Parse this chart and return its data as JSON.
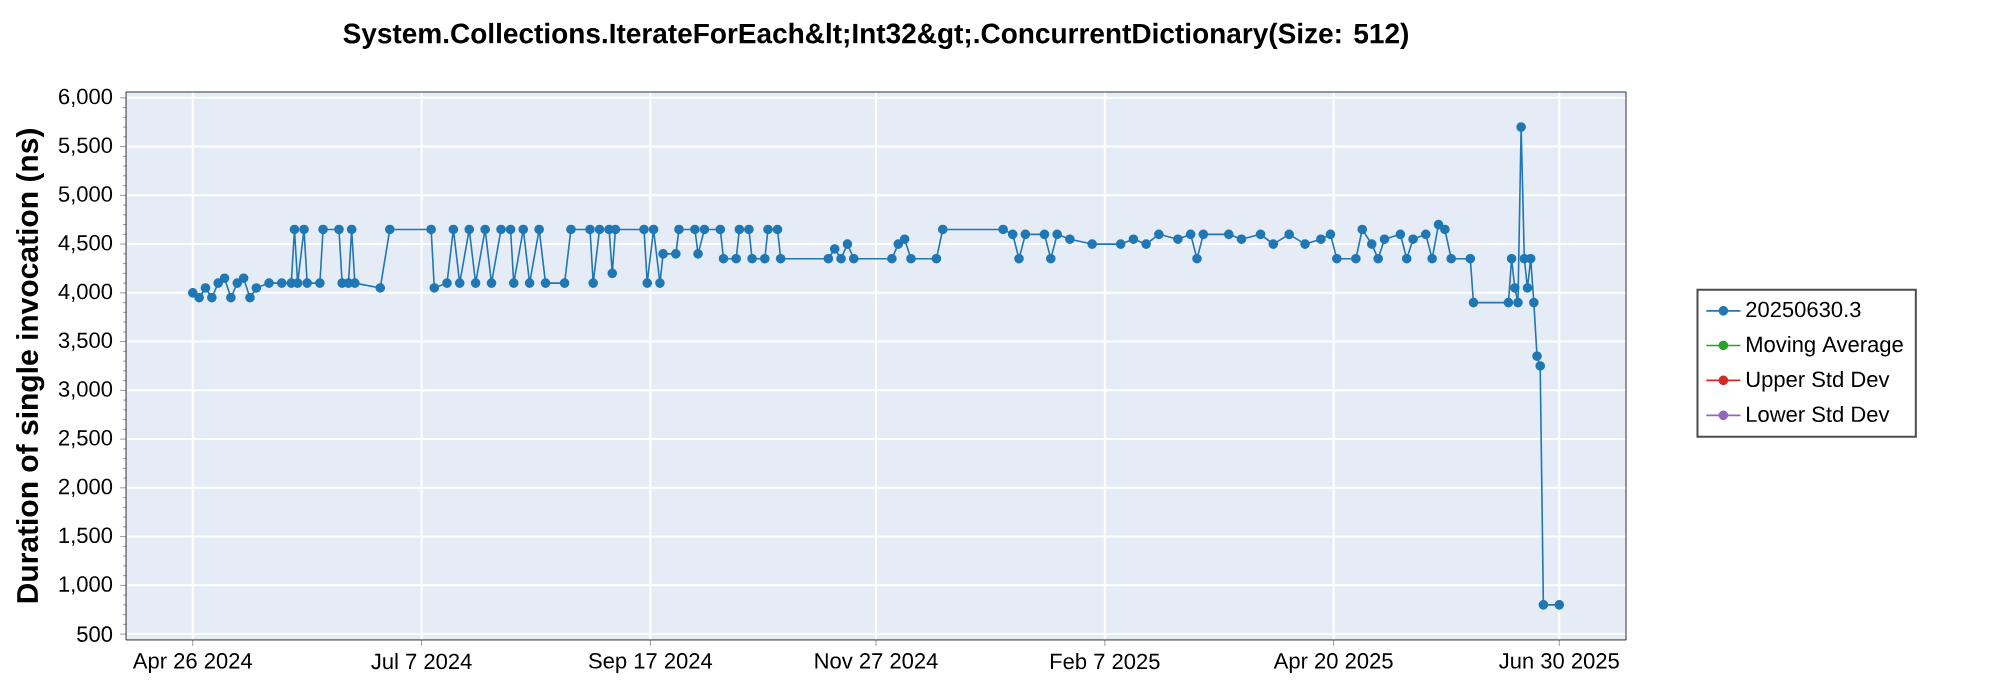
{
  "chart_data": {
    "type": "line",
    "title": "System.Collections.IterateForEach&lt;Int32&gt;.ConcurrentDictionary(Size: 512)",
    "ylabel": "Duration of single invocation (ns)",
    "xlim": [
      "2024-04-05",
      "2025-07-21"
    ],
    "ylim": [
      440,
      6060
    ],
    "xticks": [
      {
        "value": "2024-04-26",
        "label": "Apr 26 2024"
      },
      {
        "value": "2024-07-07",
        "label": "Jul 7 2024"
      },
      {
        "value": "2024-09-17",
        "label": "Sep 17 2024"
      },
      {
        "value": "2024-11-27",
        "label": "Nov 27 2024"
      },
      {
        "value": "2025-02-07",
        "label": "Feb 7 2025"
      },
      {
        "value": "2025-04-20",
        "label": "Apr 20 2025"
      },
      {
        "value": "2025-06-30",
        "label": "Jun 30 2025"
      }
    ],
    "yticks": [
      {
        "value": 500,
        "label": "500"
      },
      {
        "value": 1000,
        "label": "1,000"
      },
      {
        "value": 1500,
        "label": "1,500"
      },
      {
        "value": 2000,
        "label": "2,000"
      },
      {
        "value": 2500,
        "label": "2,500"
      },
      {
        "value": 3000,
        "label": "3,000"
      },
      {
        "value": 3500,
        "label": "3,500"
      },
      {
        "value": 4000,
        "label": "4,000"
      },
      {
        "value": 4500,
        "label": "4,500"
      },
      {
        "value": 5000,
        "label": "5,000"
      },
      {
        "value": 5500,
        "label": "5,500"
      },
      {
        "value": 6000,
        "label": "6,000"
      }
    ],
    "grid": true,
    "legend": "right",
    "marker": "circle",
    "line_style": "solid",
    "series": [
      {
        "name": "20250630.3",
        "color": "#1f77b4",
        "x": [
          "2024-04-26",
          "2024-04-28",
          "2024-04-30",
          "2024-05-02",
          "2024-05-04",
          "2024-05-06",
          "2024-05-08",
          "2024-05-10",
          "2024-05-12",
          "2024-05-14",
          "2024-05-16",
          "2024-05-20",
          "2024-05-24",
          "2024-05-27",
          "2024-05-28",
          "2024-05-29",
          "2024-05-31",
          "2024-06-01",
          "2024-06-05",
          "2024-06-06",
          "2024-06-11",
          "2024-06-12",
          "2024-06-14",
          "2024-06-15",
          "2024-06-16",
          "2024-06-24",
          "2024-06-27",
          "2024-07-10",
          "2024-07-11",
          "2024-07-15",
          "2024-07-17",
          "2024-07-19",
          "2024-07-22",
          "2024-07-24",
          "2024-07-27",
          "2024-07-29",
          "2024-08-01",
          "2024-08-04",
          "2024-08-05",
          "2024-08-08",
          "2024-08-10",
          "2024-08-13",
          "2024-08-15",
          "2024-08-21",
          "2024-08-23",
          "2024-08-29",
          "2024-08-30",
          "2024-09-01",
          "2024-09-04",
          "2024-09-05",
          "2024-09-06",
          "2024-09-15",
          "2024-09-16",
          "2024-09-18",
          "2024-09-20",
          "2024-09-21",
          "2024-09-25",
          "2024-09-26",
          "2024-10-01",
          "2024-10-02",
          "2024-10-04",
          "2024-10-09",
          "2024-10-10",
          "2024-10-14",
          "2024-10-15",
          "2024-10-18",
          "2024-10-19",
          "2024-10-23",
          "2024-10-24",
          "2024-10-27",
          "2024-10-28",
          "2024-11-12",
          "2024-11-14",
          "2024-11-16",
          "2024-11-18",
          "2024-11-20",
          "2024-12-02",
          "2024-12-04",
          "2024-12-06",
          "2024-12-08",
          "2024-12-16",
          "2024-12-18",
          "2025-01-06",
          "2025-01-09",
          "2025-01-11",
          "2025-01-13",
          "2025-01-19",
          "2025-01-21",
          "2025-01-23",
          "2025-01-27",
          "2025-02-03",
          "2025-02-12",
          "2025-02-16",
          "2025-02-20",
          "2025-02-24",
          "2025-03-02",
          "2025-03-06",
          "2025-03-08",
          "2025-03-10",
          "2025-03-18",
          "2025-03-22",
          "2025-03-28",
          "2025-04-01",
          "2025-04-06",
          "2025-04-11",
          "2025-04-16",
          "2025-04-19",
          "2025-04-21",
          "2025-04-27",
          "2025-04-29",
          "2025-05-02",
          "2025-05-04",
          "2025-05-06",
          "2025-05-11",
          "2025-05-13",
          "2025-05-15",
          "2025-05-19",
          "2025-05-21",
          "2025-05-23",
          "2025-05-25",
          "2025-05-27",
          "2025-06-02",
          "2025-06-03",
          "2025-06-14",
          "2025-06-15",
          "2025-06-16",
          "2025-06-17",
          "2025-06-18",
          "2025-06-19",
          "2025-06-20",
          "2025-06-21",
          "2025-06-22",
          "2025-06-23",
          "2025-06-24",
          "2025-06-25",
          "2025-06-30"
        ],
        "values": [
          4000,
          3950,
          4050,
          3950,
          4100,
          4150,
          3950,
          4100,
          4150,
          3950,
          4050,
          4100,
          4100,
          4100,
          4650,
          4100,
          4650,
          4100,
          4100,
          4650,
          4650,
          4100,
          4100,
          4650,
          4100,
          4050,
          4650,
          4650,
          4050,
          4100,
          4650,
          4100,
          4650,
          4100,
          4650,
          4100,
          4650,
          4650,
          4100,
          4650,
          4100,
          4650,
          4100,
          4100,
          4650,
          4650,
          4100,
          4650,
          4650,
          4200,
          4650,
          4650,
          4100,
          4650,
          4100,
          4400,
          4400,
          4650,
          4650,
          4400,
          4650,
          4650,
          4350,
          4350,
          4650,
          4650,
          4350,
          4350,
          4650,
          4650,
          4350,
          4350,
          4450,
          4350,
          4500,
          4350,
          4350,
          4500,
          4550,
          4350,
          4350,
          4650,
          4650,
          4600,
          4350,
          4600,
          4600,
          4350,
          4600,
          4550,
          4500,
          4500,
          4550,
          4500,
          4600,
          4550,
          4600,
          4350,
          4600,
          4600,
          4550,
          4600,
          4500,
          4600,
          4500,
          4550,
          4600,
          4350,
          4350,
          4650,
          4500,
          4350,
          4550,
          4600,
          4350,
          4550,
          4600,
          4350,
          4700,
          4650,
          4350,
          4350,
          3900,
          3900,
          4350,
          4050,
          3900,
          5700,
          4350,
          4050,
          4350,
          3900,
          3350,
          3250,
          800,
          800
        ]
      },
      {
        "name": "Moving Average",
        "color": "#2ca02c"
      },
      {
        "name": "Upper Std Dev",
        "color": "#d62728"
      },
      {
        "name": "Lower Std Dev",
        "color": "#9467bd"
      }
    ]
  }
}
